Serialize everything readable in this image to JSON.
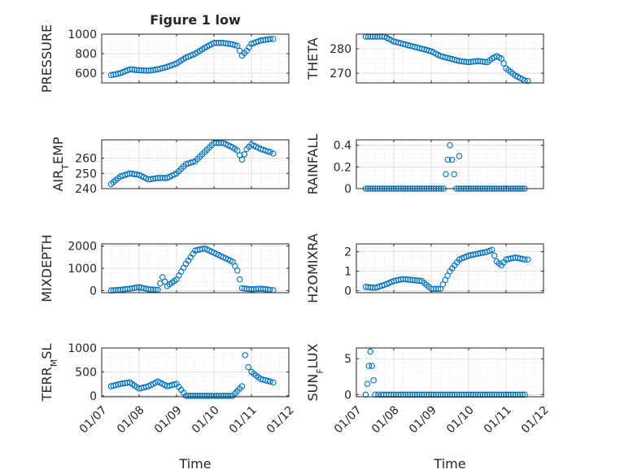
{
  "figure": {
    "title": "Figure 1 low",
    "marker_color": "#0072BD",
    "axis_color": "#262626",
    "grid_color": "#d8d8d8"
  },
  "chart_data": [
    {
      "type": "scatter",
      "ylabel": "PRESSURE",
      "xlim": [
        "01/07",
        "01/12"
      ],
      "ylim": [
        500,
        1000
      ],
      "yticks": [
        600,
        800,
        1000
      ],
      "xtick_labels_visible": false,
      "x": [
        "01/07 06:00",
        "01/07 12:00",
        "01/07 18:00",
        "01/08 00:00",
        "01/08 06:00",
        "01/08 12:00",
        "01/08 18:00",
        "01/09 00:00",
        "01/09 06:00",
        "01/09 12:00",
        "01/09 18:00",
        "01/10 00:00",
        "01/10 06:00",
        "01/10 12:00",
        "01/10 15:00",
        "01/10 18:00",
        "01/10 21:00",
        "01/11 00:00",
        "01/11 06:00",
        "01/11 12:00",
        "01/11 14:00"
      ],
      "y": [
        580,
        600,
        640,
        630,
        625,
        640,
        665,
        700,
        760,
        800,
        860,
        910,
        910,
        895,
        880,
        780,
        830,
        900,
        935,
        950,
        950
      ]
    },
    {
      "type": "scatter",
      "ylabel": "THETA",
      "xlim": [
        "01/07",
        "01/12"
      ],
      "ylim": [
        266,
        286
      ],
      "yticks": [
        270,
        280
      ],
      "xtick_labels_visible": false,
      "x": [
        "01/07 06:00",
        "01/07 12:00",
        "01/07 18:00",
        "01/08 00:00",
        "01/08 06:00",
        "01/08 12:00",
        "01/08 18:00",
        "01/09 00:00",
        "01/09 06:00",
        "01/09 12:00",
        "01/09 18:00",
        "01/10 00:00",
        "01/10 06:00",
        "01/10 12:00",
        "01/10 15:00",
        "01/10 18:00",
        "01/10 21:00",
        "01/11 00:00",
        "01/11 06:00",
        "01/11 12:00",
        "01/11 14:00"
      ],
      "y": [
        285,
        285,
        285,
        283,
        282,
        281,
        280,
        279,
        277,
        276,
        275,
        274.5,
        275,
        274.5,
        276,
        277,
        276,
        272,
        269,
        267,
        266.8
      ]
    },
    {
      "type": "scatter",
      "ylabel_main": "AIR",
      "ylabel_sub": "T",
      "ylabel_rest": "EMP",
      "xlim": [
        "01/07",
        "01/12"
      ],
      "ylim": [
        240,
        272
      ],
      "yticks": [
        240,
        250,
        260
      ],
      "xtick_labels_visible": false,
      "x": [
        "01/07 06:00",
        "01/07 12:00",
        "01/07 18:00",
        "01/08 00:00",
        "01/08 06:00",
        "01/08 12:00",
        "01/08 18:00",
        "01/09 00:00",
        "01/09 06:00",
        "01/09 12:00",
        "01/09 18:00",
        "01/10 00:00",
        "01/10 06:00",
        "01/10 12:00",
        "01/10 15:00",
        "01/10 18:00",
        "01/10 21:00",
        "01/11 00:00",
        "01/11 06:00",
        "01/11 12:00",
        "01/11 14:00"
      ],
      "y": [
        243,
        248,
        250,
        249,
        246,
        247,
        247,
        250,
        256,
        258,
        264,
        270,
        270,
        267,
        265,
        259,
        266,
        269,
        266,
        264,
        263
      ]
    },
    {
      "type": "scatter",
      "ylabel": "RAINFALL",
      "xlim": [
        "01/07",
        "01/12"
      ],
      "ylim": [
        0,
        0.45
      ],
      "yticks": [
        0,
        0.2,
        0.4
      ],
      "xtick_labels_visible": false,
      "x": [
        "01/07 06:00",
        "01/07 12:00",
        "01/08 00:00",
        "01/08 12:00",
        "01/09 00:00",
        "01/09 08:00",
        "01/09 12:00",
        "01/09 16:00",
        "01/10 00:00",
        "01/10 12:00",
        "01/11 00:00",
        "01/11 06:00",
        "01/11 12:00"
      ],
      "y": [
        0,
        0,
        0,
        0,
        0,
        0,
        0.4,
        0,
        0,
        0,
        0,
        0,
        0
      ],
      "extra_points": [
        {
          "x": "01/09 18:00",
          "y": 0.3
        }
      ]
    },
    {
      "type": "scatter",
      "ylabel": "MIXDEPTH",
      "xlim": [
        "01/07",
        "01/12"
      ],
      "ylim": [
        -100,
        2100
      ],
      "yticks": [
        0,
        1000,
        2000
      ],
      "xtick_labels_visible": false,
      "x": [
        "01/07 06:00",
        "01/07 12:00",
        "01/07 18:00",
        "01/08 00:00",
        "01/08 06:00",
        "01/08 12:00",
        "01/08 15:00",
        "01/08 18:00",
        "01/09 00:00",
        "01/09 06:00",
        "01/09 12:00",
        "01/09 18:00",
        "01/10 00:00",
        "01/10 06:00",
        "01/10 12:00",
        "01/10 15:00",
        "01/10 18:00",
        "01/11 00:00",
        "01/11 06:00",
        "01/11 12:00",
        "01/11 14:00"
      ],
      "y": [
        0,
        30,
        80,
        150,
        50,
        30,
        600,
        200,
        500,
        1200,
        1800,
        1900,
        1700,
        1500,
        1300,
        900,
        100,
        50,
        80,
        30,
        10
      ]
    },
    {
      "type": "scatter",
      "ylabel": "H2OMIXRA",
      "xlim": [
        "01/07",
        "01/12"
      ],
      "ylim": [
        -0.1,
        2.4
      ],
      "yticks": [
        0,
        1,
        2
      ],
      "xtick_labels_visible": false,
      "x": [
        "01/07 06:00",
        "01/07 12:00",
        "01/07 18:00",
        "01/08 00:00",
        "01/08 06:00",
        "01/08 12:00",
        "01/08 18:00",
        "01/09 00:00",
        "01/09 06:00",
        "01/09 12:00",
        "01/09 18:00",
        "01/10 00:00",
        "01/10 06:00",
        "01/10 12:00",
        "01/10 15:00",
        "01/10 18:00",
        "01/10 21:00",
        "01/11 00:00",
        "01/11 06:00",
        "01/11 12:00",
        "01/11 14:00"
      ],
      "y": [
        0.2,
        0.15,
        0.3,
        0.5,
        0.6,
        0.55,
        0.5,
        0.1,
        0.1,
        1.0,
        1.6,
        1.8,
        1.9,
        2.0,
        2.1,
        1.5,
        1.3,
        1.6,
        1.7,
        1.6,
        1.6
      ]
    },
    {
      "type": "scatter",
      "ylabel_main": "TERR",
      "ylabel_sub": "M",
      "ylabel_rest": "SL",
      "xlim": [
        "01/07",
        "01/12"
      ],
      "ylim": [
        -20,
        1000
      ],
      "yticks": [
        0,
        500,
        1000
      ],
      "xtick_labels": [
        "01/07",
        "01/08",
        "01/09",
        "01/10",
        "01/11",
        "01/12"
      ],
      "xlabel": "Time",
      "x": [
        "01/07 06:00",
        "01/07 12:00",
        "01/07 18:00",
        "01/08 00:00",
        "01/08 06:00",
        "01/08 12:00",
        "01/08 18:00",
        "01/09 00:00",
        "01/09 06:00",
        "01/09 12:00",
        "01/09 18:00",
        "01/10 00:00",
        "01/10 06:00",
        "01/10 12:00",
        "01/10 18:00",
        "01/10 20:00",
        "01/10 22:00",
        "01/11 00:00",
        "01/11 06:00",
        "01/11 12:00",
        "01/11 14:00"
      ],
      "y": [
        200,
        250,
        280,
        150,
        200,
        300,
        200,
        250,
        0,
        0,
        0,
        0,
        0,
        0,
        200,
        850,
        600,
        500,
        350,
        300,
        280
      ]
    },
    {
      "type": "scatter",
      "ylabel_main": "SUN",
      "ylabel_sub": "F",
      "ylabel_rest": "LUX",
      "xlim": [
        "01/07",
        "01/12"
      ],
      "ylim": [
        -0.3,
        6.5
      ],
      "yticks": [
        0,
        5
      ],
      "xtick_labels": [
        "01/07",
        "01/08",
        "01/09",
        "01/10",
        "01/11",
        "01/12"
      ],
      "xlabel": "Time",
      "x": [
        "01/07 06:00",
        "01/07 07:00",
        "01/07 08:00",
        "01/07 09:00",
        "01/07 10:00",
        "01/07 11:00",
        "01/07 12:00",
        "01/07 14:00",
        "01/07 16:00",
        "01/08 00:00",
        "01/08 12:00",
        "01/09 00:00",
        "01/09 12:00",
        "01/10 00:00",
        "01/10 12:00",
        "01/11 00:00",
        "01/11 06:00",
        "01/11 12:00"
      ],
      "y": [
        0,
        1.5,
        4.0,
        6.0,
        4.0,
        2.0,
        0,
        0,
        0,
        0,
        0,
        0,
        0,
        0,
        0,
        0,
        0,
        0
      ]
    }
  ]
}
